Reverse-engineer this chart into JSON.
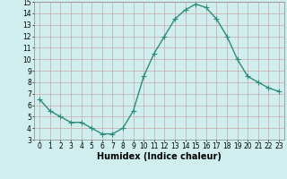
{
  "x": [
    0,
    1,
    2,
    3,
    4,
    5,
    6,
    7,
    8,
    9,
    10,
    11,
    12,
    13,
    14,
    15,
    16,
    17,
    18,
    19,
    20,
    21,
    22,
    23
  ],
  "y": [
    6.5,
    5.5,
    5.0,
    4.5,
    4.5,
    4.0,
    3.5,
    3.5,
    4.0,
    5.5,
    8.5,
    10.5,
    12.0,
    13.5,
    14.3,
    14.8,
    14.5,
    13.5,
    12.0,
    10.0,
    8.5,
    8.0,
    7.5,
    7.2
  ],
  "xlabel": "Humidex (Indice chaleur)",
  "ylim": [
    3,
    15
  ],
  "xlim": [
    -0.5,
    23.5
  ],
  "yticks": [
    3,
    4,
    5,
    6,
    7,
    8,
    9,
    10,
    11,
    12,
    13,
    14,
    15
  ],
  "xticks": [
    0,
    1,
    2,
    3,
    4,
    5,
    6,
    7,
    8,
    9,
    10,
    11,
    12,
    13,
    14,
    15,
    16,
    17,
    18,
    19,
    20,
    21,
    22,
    23
  ],
  "line_color": "#2e8b7a",
  "marker": "+",
  "bg_color": "#d0eeee",
  "grid_color": "#c8a8a8",
  "tick_fontsize": 5.5,
  "label_fontsize": 7,
  "label_fontweight": "bold"
}
